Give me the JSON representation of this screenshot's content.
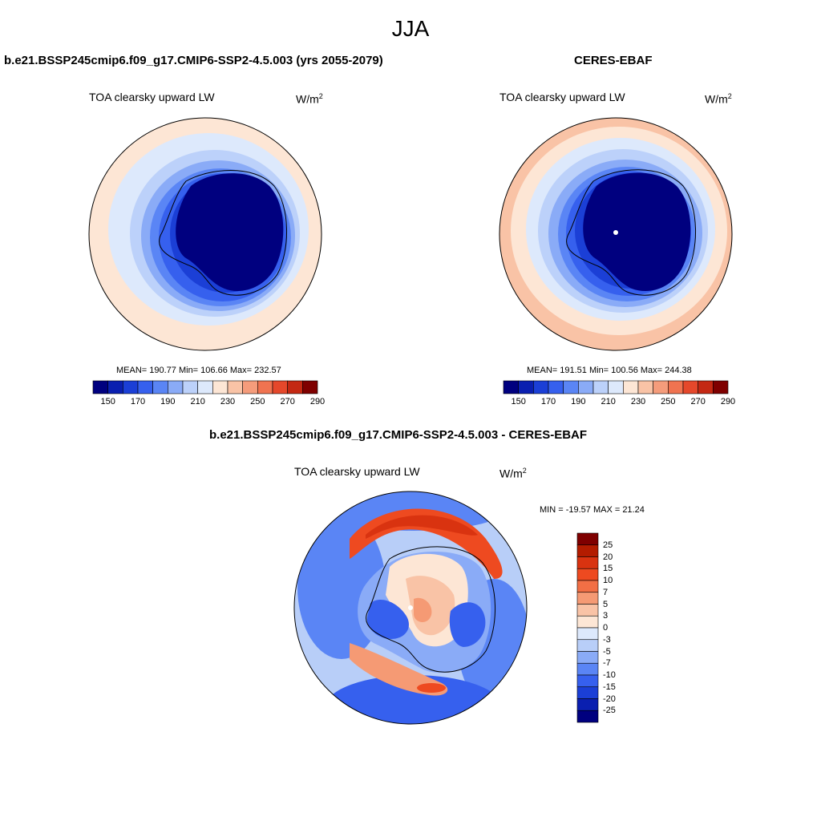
{
  "figure_title": "JJA",
  "panels": [
    {
      "title": "b.e21.BSSP245cmip6.f09_g17.CMIP6-SSP2-4.5.003 (yrs 2055-2079)",
      "variable": "TOA clearsky upward LW",
      "units_base": "W/m",
      "units_exp": "2",
      "stats": "MEAN= 190.77  Min= 106.66  Max= 232.57",
      "colorbar_ticks": [
        "150",
        "170",
        "190",
        "210",
        "230",
        "250",
        "270",
        "290"
      ]
    },
    {
      "title": "CERES-EBAF",
      "variable": "TOA clearsky upward LW",
      "units_base": "W/m",
      "units_exp": "2",
      "stats": "MEAN= 191.51  Min= 100.56  Max= 244.38",
      "colorbar_ticks": [
        "150",
        "170",
        "190",
        "210",
        "230",
        "250",
        "270",
        "290"
      ]
    },
    {
      "title": "b.e21.BSSP245cmip6.f09_g17.CMIP6-SSP2-4.5.003 - CERES-EBAF",
      "variable": "TOA clearsky upward LW",
      "units_base": "W/m",
      "units_exp": "2",
      "stats": "MIN = -19.57 MAX =  21.24",
      "colorbar_ticks": [
        "25",
        "20",
        "15",
        "10",
        "7",
        "5",
        "3",
        "0",
        "-3",
        "-5",
        "-7",
        "-10",
        "-15",
        "-20",
        "-25"
      ]
    }
  ],
  "colors": {
    "abs_scale": [
      "#00007f",
      "#0a1fb0",
      "#1b3fd6",
      "#3660ee",
      "#5a85f5",
      "#8aabf7",
      "#bcd1fa",
      "#dde9fc",
      "#fde6d5",
      "#f9c3a6",
      "#f59c7b",
      "#f07350",
      "#e5482b",
      "#c42813",
      "#7f0000"
    ],
    "diff_scale": [
      "#7f0000",
      "#b31c00",
      "#d93310",
      "#ee4a20",
      "#f26f45",
      "#f59a74",
      "#f9c3a6",
      "#fde6d5",
      "#dde9fc",
      "#b8cef8",
      "#8aabf7",
      "#5a85f5",
      "#3660ee",
      "#1b3fd6",
      "#0a1fb0",
      "#00007f"
    ]
  }
}
